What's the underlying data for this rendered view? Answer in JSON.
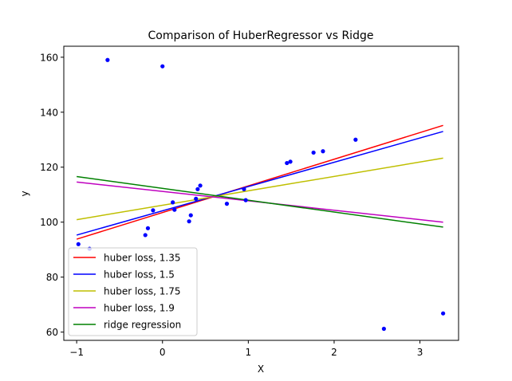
{
  "chart_data": {
    "type": "scatter",
    "title": "Comparison of HuberRegressor vs Ridge",
    "xlabel": "X",
    "ylabel": "y",
    "xlim": [
      -1.15,
      3.45
    ],
    "ylim": [
      57.0,
      164.0
    ],
    "xticks": [
      -1,
      0,
      1,
      2,
      3
    ],
    "yticks": [
      60,
      80,
      100,
      120,
      140,
      160
    ],
    "grid": false,
    "legend_position": "lower-left",
    "points": {
      "color": "#0000ff",
      "x": [
        -0.98,
        -0.85,
        -0.64,
        0.0,
        -0.2,
        -0.17,
        -0.11,
        0.12,
        0.14,
        0.31,
        0.33,
        0.39,
        0.41,
        0.44,
        0.75,
        0.95,
        0.97,
        1.45,
        1.49,
        1.76,
        1.87,
        2.25,
        2.58,
        3.27
      ],
      "y": [
        92.0,
        90.3,
        159.0,
        156.7,
        95.3,
        97.8,
        104.3,
        107.2,
        104.5,
        100.3,
        102.5,
        108.5,
        112.0,
        113.3,
        106.7,
        112.0,
        108.0,
        121.5,
        122.0,
        125.3,
        125.8,
        130.0,
        61.2,
        66.8
      ]
    },
    "series": [
      {
        "name": "huber loss, 1.35",
        "color": "#ff0000",
        "x": [
          -1.0,
          3.27
        ],
        "y": [
          93.8,
          135.2
        ]
      },
      {
        "name": "huber loss, 1.5",
        "color": "#0000ff",
        "x": [
          -1.0,
          3.27
        ],
        "y": [
          95.3,
          133.0
        ]
      },
      {
        "name": "huber loss, 1.75",
        "color": "#bfbf00",
        "x": [
          -1.0,
          3.27
        ],
        "y": [
          100.9,
          123.3
        ]
      },
      {
        "name": "huber loss, 1.9",
        "color": "#bf00bf",
        "x": [
          -1.0,
          3.27
        ],
        "y": [
          114.6,
          100.0
        ]
      },
      {
        "name": "ridge regression",
        "color": "#008000",
        "x": [
          -1.0,
          3.27
        ],
        "y": [
          116.6,
          98.2
        ]
      }
    ]
  }
}
